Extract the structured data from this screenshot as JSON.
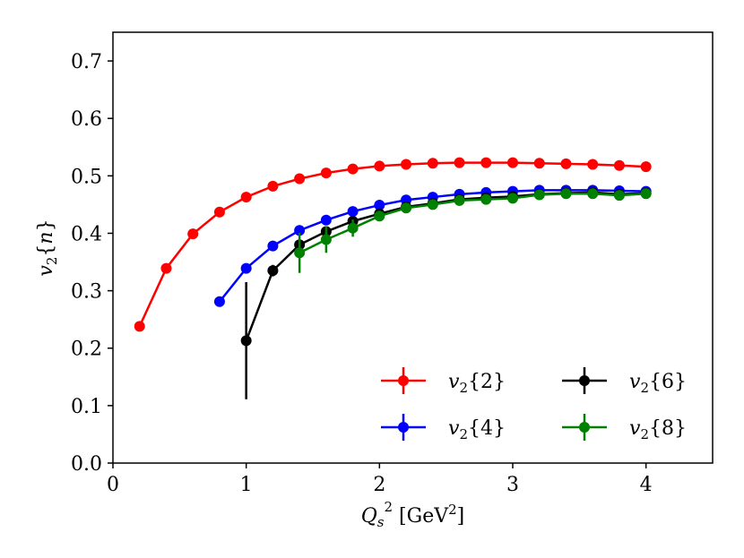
{
  "chart_data": {
    "type": "line",
    "title": "",
    "xlabel": "Q_s^2 [GeV^2]",
    "xlabel_parts": {
      "main": "Q",
      "sub": "s",
      "sup": "2",
      "unit": "[GeV",
      "unit_sup": "2",
      "unit_close": "]"
    },
    "ylabel": "v_2{n}",
    "ylabel_parts": {
      "main": "v",
      "sub": "2",
      "rest": "{n}"
    },
    "xlim": [
      0,
      4.5
    ],
    "ylim": [
      0,
      0.75
    ],
    "xticks": [
      0,
      1,
      2,
      3,
      4
    ],
    "xtick_labels": [
      "0",
      "1",
      "2",
      "3",
      "4"
    ],
    "yticks": [
      0.0,
      0.1,
      0.2,
      0.3,
      0.4,
      0.5,
      0.6,
      0.7
    ],
    "ytick_labels": [
      "0.0",
      "0.1",
      "0.2",
      "0.3",
      "0.4",
      "0.5",
      "0.6",
      "0.7"
    ],
    "grid": false,
    "legend_position": "lower-right",
    "series": [
      {
        "name": "v_2{2}",
        "legend_main": "v",
        "legend_sub": "2",
        "legend_rest": "{2}",
        "color": "#ff0000",
        "x": [
          0.2,
          0.4,
          0.6,
          0.8,
          1.0,
          1.2,
          1.4,
          1.6,
          1.8,
          2.0,
          2.2,
          2.4,
          2.6,
          2.8,
          3.0,
          3.2,
          3.4,
          3.6,
          3.8,
          4.0
        ],
        "y": [
          0.238,
          0.339,
          0.399,
          0.437,
          0.463,
          0.482,
          0.495,
          0.505,
          0.512,
          0.517,
          0.52,
          0.522,
          0.523,
          0.523,
          0.523,
          0.522,
          0.521,
          0.52,
          0.518,
          0.516
        ],
        "yerr": [
          0.004,
          0.004,
          0.003,
          0.003,
          0.003,
          0.003,
          0.002,
          0.002,
          0.002,
          0.002,
          0.002,
          0.002,
          0.002,
          0.002,
          0.002,
          0.002,
          0.002,
          0.002,
          0.002,
          0.002
        ]
      },
      {
        "name": "v_2{4}",
        "legend_main": "v",
        "legend_sub": "2",
        "legend_rest": "{4}",
        "color": "#0000ff",
        "x": [
          0.8,
          1.0,
          1.2,
          1.4,
          1.6,
          1.8,
          2.0,
          2.2,
          2.4,
          2.6,
          2.8,
          3.0,
          3.2,
          3.4,
          3.6,
          3.8,
          4.0
        ],
        "y": [
          0.281,
          0.339,
          0.378,
          0.405,
          0.423,
          0.438,
          0.449,
          0.458,
          0.463,
          0.468,
          0.471,
          0.473,
          0.475,
          0.475,
          0.475,
          0.474,
          0.473
        ],
        "yerr": [
          0.005,
          0.004,
          0.004,
          0.003,
          0.003,
          0.003,
          0.003,
          0.003,
          0.003,
          0.003,
          0.003,
          0.003,
          0.003,
          0.003,
          0.003,
          0.003,
          0.003
        ]
      },
      {
        "name": "v_2{6}",
        "legend_main": "v",
        "legend_sub": "2",
        "legend_rest": "{6}",
        "color": "#000000",
        "x": [
          1.0,
          1.2,
          1.4,
          1.6,
          1.8,
          2.0,
          2.2,
          2.4,
          2.6,
          2.8,
          3.0,
          3.2,
          3.4,
          3.6,
          3.8,
          4.0
        ],
        "y": [
          0.213,
          0.335,
          0.38,
          0.403,
          0.421,
          0.434,
          0.446,
          0.452,
          0.459,
          0.462,
          0.464,
          0.468,
          0.47,
          0.471,
          0.468,
          0.47
        ],
        "yerr": [
          0.102,
          0.01,
          0.008,
          0.006,
          0.005,
          0.004,
          0.004,
          0.004,
          0.004,
          0.004,
          0.004,
          0.004,
          0.004,
          0.004,
          0.004,
          0.004
        ]
      },
      {
        "name": "v_2{8}",
        "legend_main": "v",
        "legend_sub": "2",
        "legend_rest": "{8}",
        "color": "#008000",
        "x": [
          1.4,
          1.6,
          1.8,
          2.0,
          2.2,
          2.4,
          2.6,
          2.8,
          3.0,
          3.2,
          3.4,
          3.6,
          3.8,
          4.0
        ],
        "y": [
          0.366,
          0.389,
          0.409,
          0.43,
          0.444,
          0.45,
          0.457,
          0.459,
          0.461,
          0.467,
          0.469,
          0.469,
          0.466,
          0.469
        ],
        "yerr": [
          0.035,
          0.023,
          0.015,
          0.008,
          0.006,
          0.005,
          0.005,
          0.004,
          0.004,
          0.004,
          0.004,
          0.004,
          0.004,
          0.004
        ]
      }
    ]
  }
}
